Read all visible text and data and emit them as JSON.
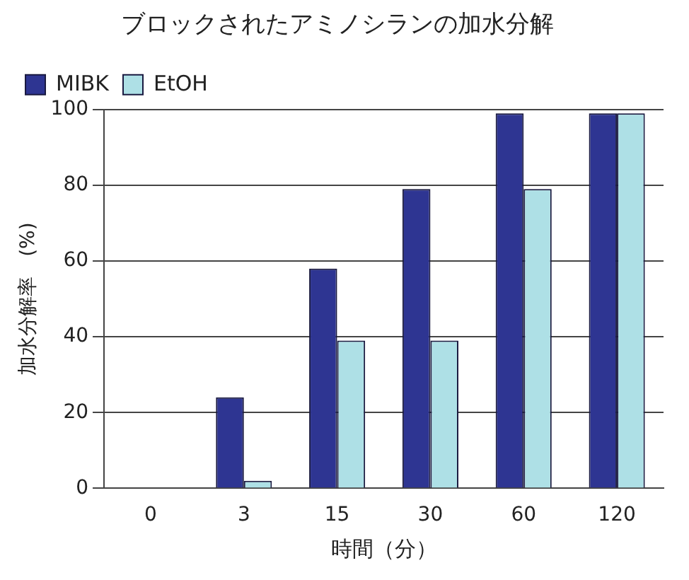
{
  "chart_data": {
    "type": "bar",
    "title": "ブロックされたアミノシランの加水分解",
    "xlabel": "時間（分）",
    "ylabel": "加水分解率　(%)",
    "categories": [
      "0",
      "3",
      "15",
      "30",
      "60",
      "120"
    ],
    "series": [
      {
        "name": "MIBK",
        "color": "#2e3592",
        "values": [
          0,
          24,
          58,
          79,
          99,
          99
        ]
      },
      {
        "name": "EtOH",
        "color": "#aee0e6",
        "values": [
          0,
          2,
          39,
          39,
          79,
          99
        ]
      }
    ],
    "ylim": [
      0,
      100
    ],
    "yticks": [
      0,
      20,
      40,
      60,
      80,
      100
    ],
    "grid": "y",
    "legend": "top left"
  }
}
